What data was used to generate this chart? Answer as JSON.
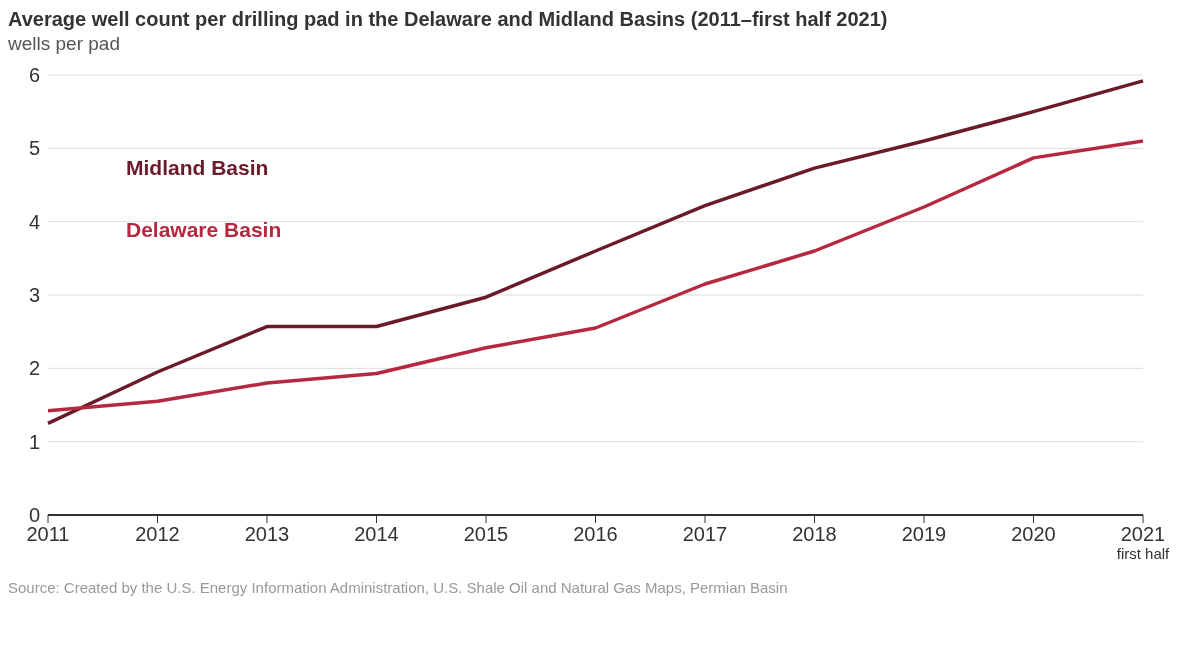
{
  "chart_data": {
    "type": "line",
    "title": "Average well count per drilling pad in the Delaware and Midland Basins (2011–first half 2021)",
    "subtitle": "wells per pad",
    "categories": [
      "2011",
      "2012",
      "2013",
      "2014",
      "2015",
      "2016",
      "2017",
      "2018",
      "2019",
      "2020",
      "2021\nfirst half"
    ],
    "series": [
      {
        "name": "Midland Basin",
        "color": "#6b1a2a",
        "values": [
          1.25,
          1.95,
          2.57,
          2.57,
          2.97,
          3.6,
          4.22,
          4.73,
          5.1,
          5.5,
          5.92
        ]
      },
      {
        "name": "Delaware Basin",
        "color": "#b5283f",
        "values": [
          1.42,
          1.55,
          1.8,
          1.93,
          2.28,
          2.55,
          3.15,
          3.6,
          4.2,
          4.87,
          5.1
        ]
      }
    ],
    "ylim": [
      0,
      6
    ],
    "yticks": [
      0,
      1,
      2,
      3,
      4,
      5,
      6
    ],
    "grid": "y",
    "legend": false,
    "marker": "none",
    "line_style": "solid",
    "annotations": [
      "Source: Created by the U.S. Energy Information Administration, U.S. Shale Oil and Natural Gas Maps, Permian Basin"
    ]
  }
}
